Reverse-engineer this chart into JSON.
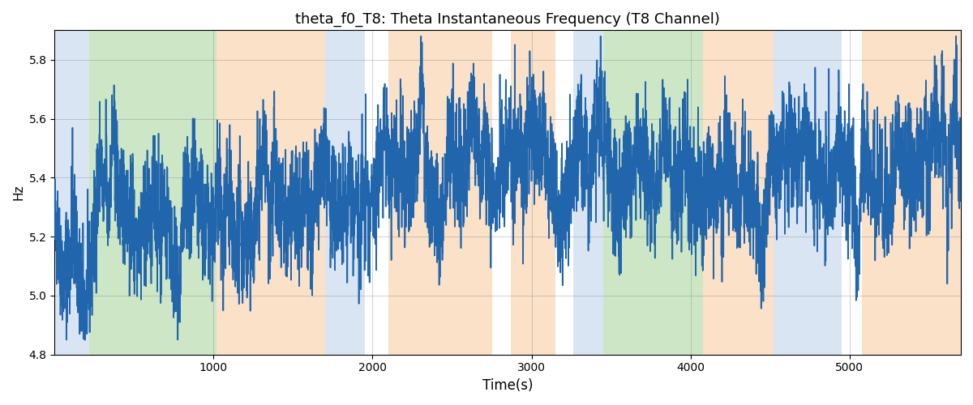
{
  "title": "theta_f0_T8: Theta Instantaneous Frequency (T8 Channel)",
  "xlabel": "Time(s)",
  "ylabel": "Hz",
  "ylim": [
    4.8,
    5.9
  ],
  "xlim": [
    0,
    5700
  ],
  "line_color": "#2166ac",
  "line_width": 1.2,
  "bg_regions": [
    {
      "xmin": 0,
      "xmax": 220,
      "color": "#aec6e8",
      "alpha": 0.45
    },
    {
      "xmin": 220,
      "xmax": 1020,
      "color": "#90c97f",
      "alpha": 0.45
    },
    {
      "xmin": 1020,
      "xmax": 1700,
      "color": "#f7c99b",
      "alpha": 0.55
    },
    {
      "xmin": 1700,
      "xmax": 1950,
      "color": "#aec6e8",
      "alpha": 0.45
    },
    {
      "xmin": 1950,
      "xmax": 2100,
      "color": "#ffffff",
      "alpha": 1.0
    },
    {
      "xmin": 2100,
      "xmax": 2750,
      "color": "#f7c99b",
      "alpha": 0.55
    },
    {
      "xmin": 2750,
      "xmax": 2870,
      "color": "#ffffff",
      "alpha": 1.0
    },
    {
      "xmin": 2870,
      "xmax": 3150,
      "color": "#f7c99b",
      "alpha": 0.55
    },
    {
      "xmin": 3150,
      "xmax": 3260,
      "color": "#ffffff",
      "alpha": 1.0
    },
    {
      "xmin": 3260,
      "xmax": 3450,
      "color": "#aec6e8",
      "alpha": 0.45
    },
    {
      "xmin": 3450,
      "xmax": 4080,
      "color": "#90c97f",
      "alpha": 0.45
    },
    {
      "xmin": 4080,
      "xmax": 4520,
      "color": "#f7c99b",
      "alpha": 0.55
    },
    {
      "xmin": 4520,
      "xmax": 4950,
      "color": "#aec6e8",
      "alpha": 0.45
    },
    {
      "xmin": 4950,
      "xmax": 5080,
      "color": "#ffffff",
      "alpha": 1.0
    },
    {
      "xmin": 5080,
      "xmax": 5700,
      "color": "#f7c99b",
      "alpha": 0.55
    }
  ],
  "seed": 42,
  "n_points": 5700,
  "base_freq": 5.25,
  "title_fontsize": 13
}
